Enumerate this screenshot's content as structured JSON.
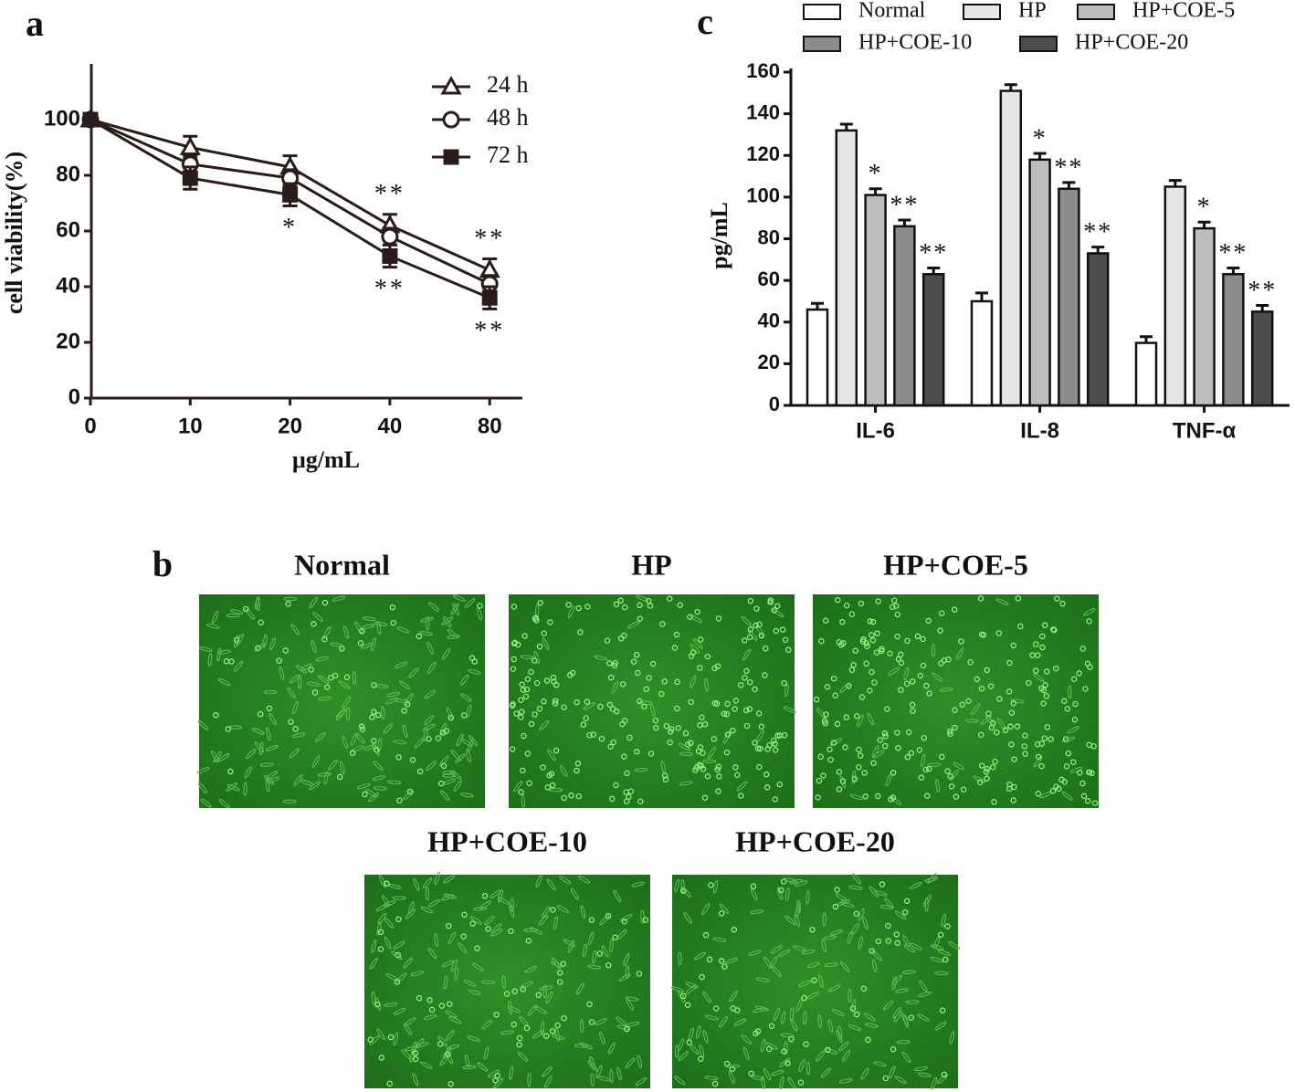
{
  "panel_labels": [
    "a",
    "b",
    "c"
  ],
  "chart_data": [
    {
      "type": "line",
      "y_label": "cell viability(%)",
      "x_label": "μg/mL",
      "categories": [
        "0",
        "10",
        "20",
        "40",
        "80"
      ],
      "ylim": [
        0,
        120
      ],
      "yticks": [
        0,
        20,
        40,
        60,
        80,
        100
      ],
      "series": [
        {
          "name": "24 h",
          "marker": "triangle",
          "color": "#2b1b1b",
          "values": [
            100,
            90,
            83,
            62,
            46
          ],
          "errors": [
            2,
            4,
            4,
            4,
            4
          ],
          "significance": [
            null,
            null,
            null,
            "**",
            "**"
          ],
          "significance_side": "above"
        },
        {
          "name": "48 h",
          "marker": "circle",
          "color": "#2b1b1b",
          "values": [
            100,
            84,
            79,
            58,
            41
          ],
          "errors": [
            2,
            3,
            3,
            3,
            3
          ]
        },
        {
          "name": "72 h",
          "marker": "square",
          "color": "#2b1b1b",
          "values": [
            100,
            79,
            73,
            51,
            36
          ],
          "errors": [
            2,
            4,
            4,
            4,
            4
          ],
          "significance": [
            null,
            null,
            "*",
            "**",
            "**"
          ],
          "significance_side": "below"
        }
      ]
    },
    {
      "type": "bar",
      "y_label": "pg/mL",
      "categories": [
        "IL-6",
        "IL-8",
        "TNF-α"
      ],
      "ylim": [
        0,
        160
      ],
      "yticks": [
        0,
        20,
        40,
        60,
        80,
        100,
        120,
        140,
        160
      ],
      "series": [
        {
          "name": "Normal",
          "color": "#ffffff",
          "values": [
            46,
            50,
            30
          ],
          "errors": [
            3,
            4,
            3
          ]
        },
        {
          "name": "HP",
          "color": "#e6e6e6",
          "values": [
            132,
            151,
            105
          ],
          "errors": [
            3,
            3,
            3
          ]
        },
        {
          "name": "HP+COE-5",
          "color": "#bdbdbd",
          "values": [
            101,
            118,
            85
          ],
          "errors": [
            3,
            3,
            3
          ],
          "significance": [
            "*",
            "*",
            "*"
          ]
        },
        {
          "name": "HP+COE-10",
          "color": "#8c8c8c",
          "values": [
            86,
            104,
            63
          ],
          "errors": [
            3,
            3,
            3
          ],
          "significance": [
            "**",
            "**",
            "**"
          ]
        },
        {
          "name": "HP+COE-20",
          "color": "#4d4d4d",
          "values": [
            63,
            73,
            45
          ],
          "errors": [
            3,
            3,
            3
          ],
          "significance": [
            "**",
            "**",
            "**"
          ]
        }
      ]
    }
  ],
  "images": [
    {
      "label": "Normal"
    },
    {
      "label": "HP"
    },
    {
      "label": "HP+COE-5"
    },
    {
      "label": "HP+COE-10"
    },
    {
      "label": "HP+COE-20"
    }
  ]
}
